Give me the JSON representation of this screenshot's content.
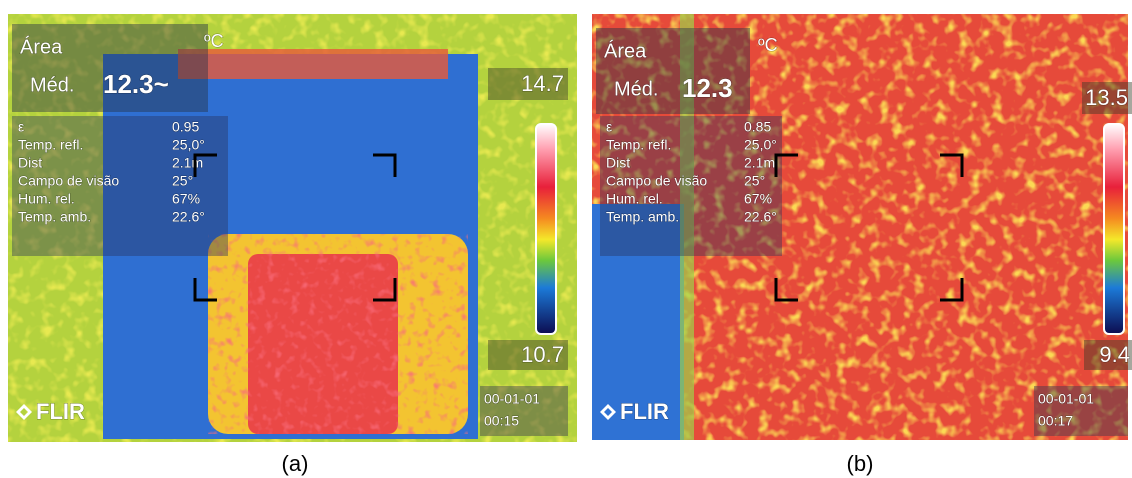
{
  "panels": [
    {
      "caption": "(a)",
      "area_label": "Área",
      "unit": "ºC",
      "mean_label": "Méd.",
      "mean_value": "12.3~",
      "parameters": [
        {
          "label": "ε",
          "value": "0.95"
        },
        {
          "label": "Temp. refl.",
          "value": "25,0°"
        },
        {
          "label": "Dist",
          "value": "2.1m"
        },
        {
          "label": "Campo de visão",
          "value": "25°"
        },
        {
          "label": "Hum. rel.",
          "value": "67%"
        },
        {
          "label": "Temp. amb.",
          "value": "22.6°"
        }
      ],
      "scale_max": "14.7",
      "scale_min": "10.7",
      "date": "00-01-01",
      "time": "00:15",
      "logo": "FLIR"
    },
    {
      "caption": "(b)",
      "area_label": "Área",
      "unit": "ºC",
      "mean_label": "Méd.",
      "mean_value": "12.3",
      "parameters": [
        {
          "label": "ε",
          "value": "0.85"
        },
        {
          "label": "Temp. refl.",
          "value": "25,0°"
        },
        {
          "label": "Dist",
          "value": "2.1m"
        },
        {
          "label": "Campo de visão",
          "value": "25°"
        },
        {
          "label": "Hum. rel.",
          "value": "67%"
        },
        {
          "label": "Temp. amb.",
          "value": "22.6°"
        }
      ],
      "scale_max": "13.5",
      "scale_min": "9.4",
      "date": "00-01-01",
      "time": "00:17",
      "logo": "FLIR"
    }
  ]
}
